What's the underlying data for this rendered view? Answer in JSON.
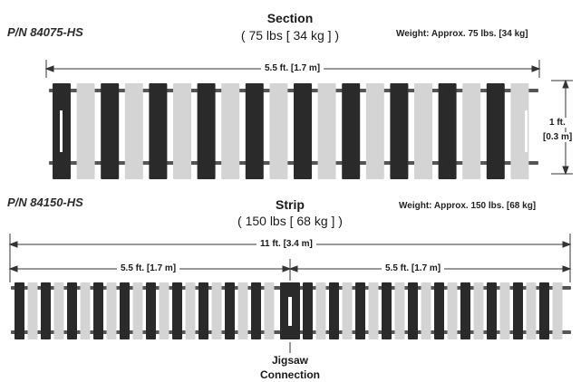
{
  "section": {
    "part_number": "P/N 84075-HS",
    "title": "Section",
    "subtitle": "( 75 lbs [ 34 kg ] )",
    "weight": "Weight: Approx. 75 lbs. [34 kg]",
    "length_label": "5.5 ft. [1.7 m]",
    "height_label_ft": "1 ft.",
    "height_label_m": "[0.3 m]"
  },
  "strip": {
    "part_number": "P/N 84150-HS",
    "title": "Strip",
    "subtitle": "( 150 lbs [ 68 kg ] )",
    "weight": "Weight: Approx. 150 lbs. [68 kg]",
    "total_length_label": "11 ft. [3.4 m]",
    "left_length_label": "5.5 ft. [1.7 m]",
    "right_length_label": "5.5 ft. [1.7 m]",
    "joint_label_line1": "Jigsaw",
    "joint_label_line2": "Connection"
  },
  "colors": {
    "dark_slat": "#2a2a2a",
    "light_slat": "#d4d4d4",
    "rod": "#555555",
    "dimension_line": "#333333"
  }
}
